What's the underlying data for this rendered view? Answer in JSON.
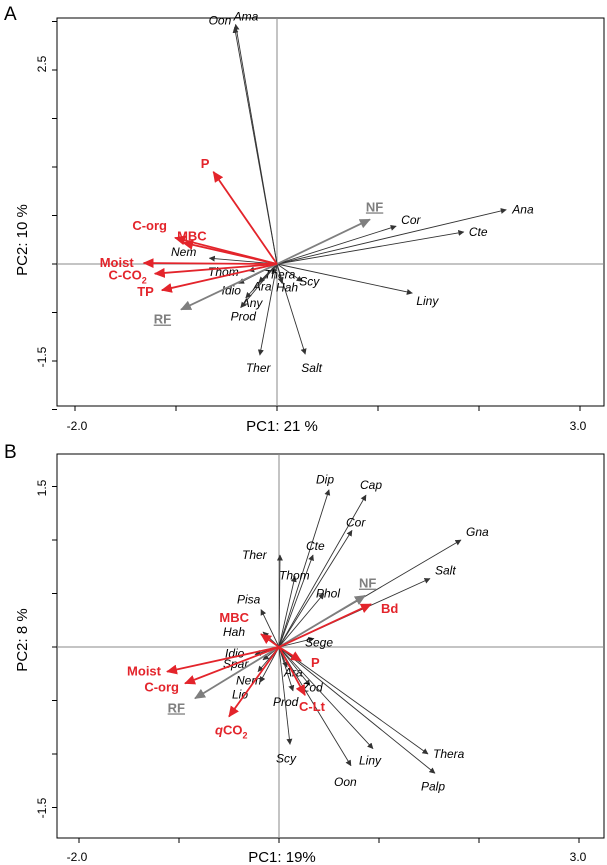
{
  "colors": {
    "species": "#333333",
    "env": "#e3242b",
    "factor": "#7f7f7f"
  },
  "chart_data": [
    {
      "panel": "A",
      "type": "scatter",
      "subtype": "biplot",
      "xlabel": "PC1: 21 %",
      "ylabel": "PC2: 10 %",
      "xlim": [
        -2.0,
        3.0
      ],
      "ylim": [
        -1.5,
        2.5
      ],
      "x_tick_labels": [
        "-2.0",
        "3.0"
      ],
      "y_tick_labels": [
        "-1.5",
        "2.5"
      ],
      "x_minor_ticks": [
        -2.0,
        -1.0,
        0.0,
        1.0,
        2.0,
        3.0
      ],
      "y_minor_ticks": [
        -1.5,
        -1.0,
        -0.5,
        0.0,
        0.5,
        1.0,
        1.5,
        2.0,
        2.5
      ],
      "species": [
        {
          "name": "Oon",
          "x": -0.42,
          "y": 2.44
        },
        {
          "name": "Ama",
          "x": -0.41,
          "y": 2.47
        },
        {
          "name": "Ana",
          "x": 2.27,
          "y": 0.56
        },
        {
          "name": "Cor",
          "x": 1.18,
          "y": 0.39
        },
        {
          "name": "Cte",
          "x": 1.85,
          "y": 0.33
        },
        {
          "name": "Liny",
          "x": 1.34,
          "y": -0.3
        },
        {
          "name": "Scy",
          "x": 0.25,
          "y": -0.18
        },
        {
          "name": "Salt",
          "x": 0.28,
          "y": -0.93
        },
        {
          "name": "Ther",
          "x": -0.17,
          "y": -0.94
        },
        {
          "name": "Nem",
          "x": -0.67,
          "y": 0.06
        },
        {
          "name": "Thom",
          "x": -0.28,
          "y": -0.07
        },
        {
          "name": "Thera",
          "x": -0.05,
          "y": -0.1
        },
        {
          "name": "Idio",
          "x": -0.38,
          "y": -0.2
        },
        {
          "name": "Ara",
          "x": -0.18,
          "y": -0.19
        },
        {
          "name": "Hah",
          "x": 0.05,
          "y": -0.2
        },
        {
          "name": "Any",
          "x": -0.31,
          "y": -0.35
        },
        {
          "name": "Prod",
          "x": -0.36,
          "y": -0.45
        }
      ],
      "env_vectors": [
        {
          "name": "P",
          "x": -0.63,
          "y": 0.95
        },
        {
          "name": "C-org",
          "x": -1.01,
          "y": 0.27
        },
        {
          "name": "MBC",
          "x": -0.93,
          "y": 0.22
        },
        {
          "name": "Moist",
          "x": -1.32,
          "y": 0.01
        },
        {
          "name": "C-CO2",
          "x": -1.21,
          "y": -0.1
        },
        {
          "name": "TP",
          "x": -1.14,
          "y": -0.27
        }
      ],
      "factor_vectors": [
        {
          "name": "NF",
          "x": 0.92,
          "y": 0.46
        },
        {
          "name": "RF",
          "x": -0.95,
          "y": -0.47
        }
      ]
    },
    {
      "panel": "B",
      "type": "scatter",
      "subtype": "biplot",
      "xlabel": "PC1: 19%",
      "ylabel": "PC2: 8 %",
      "xlim": [
        -2.0,
        3.0
      ],
      "ylim": [
        -1.5,
        1.5
      ],
      "x_tick_labels": [
        "-2.0",
        "3.0"
      ],
      "y_tick_labels": [
        "-1.5",
        "1.5"
      ],
      "x_minor_ticks": [
        -2.0,
        -1.0,
        0.0,
        1.0,
        2.0,
        3.0
      ],
      "y_minor_ticks": [
        -1.5,
        -1.0,
        -0.5,
        0.0,
        0.5,
        1.0,
        1.5
      ],
      "species": [
        {
          "name": "Dip",
          "x": 0.5,
          "y": 1.47
        },
        {
          "name": "Cap",
          "x": 0.87,
          "y": 1.42
        },
        {
          "name": "Cor",
          "x": 0.73,
          "y": 1.09
        },
        {
          "name": "Gna",
          "x": 1.82,
          "y": 1.0
        },
        {
          "name": "Cte",
          "x": 0.34,
          "y": 0.86
        },
        {
          "name": "Ther",
          "x": 0.01,
          "y": 0.86
        },
        {
          "name": "Thom",
          "x": 0.16,
          "y": 0.66
        },
        {
          "name": "Phol",
          "x": 0.45,
          "y": 0.5
        },
        {
          "name": "Salt",
          "x": 1.51,
          "y": 0.64
        },
        {
          "name": "Pisa",
          "x": -0.18,
          "y": 0.35
        },
        {
          "name": "Hah",
          "x": -0.16,
          "y": 0.14
        },
        {
          "name": "Sege",
          "x": 0.35,
          "y": 0.08
        },
        {
          "name": "Idio",
          "x": -0.24,
          "y": -0.07
        },
        {
          "name": "Spar",
          "x": -0.16,
          "y": -0.12
        },
        {
          "name": "Ara",
          "x": 0.08,
          "y": -0.19
        },
        {
          "name": "Nem",
          "x": -0.21,
          "y": -0.23
        },
        {
          "name": "Lio",
          "x": -0.19,
          "y": -0.33
        },
        {
          "name": "Prod",
          "x": 0.14,
          "y": -0.41
        },
        {
          "name": "Zod",
          "x": 0.31,
          "y": -0.36
        },
        {
          "name": "Scy",
          "x": 0.11,
          "y": -0.91
        },
        {
          "name": "Oon",
          "x": 0.72,
          "y": -1.11
        },
        {
          "name": "Liny",
          "x": 0.94,
          "y": -0.95
        },
        {
          "name": "Thera",
          "x": 1.49,
          "y": -1.0
        },
        {
          "name": "Palp",
          "x": 1.56,
          "y": -1.18
        }
      ],
      "env_vectors": [
        {
          "name": "MBC",
          "x": -0.18,
          "y": 0.12
        },
        {
          "name": "Bd",
          "x": 0.92,
          "y": 0.4
        },
        {
          "name": "P",
          "x": 0.22,
          "y": -0.13
        },
        {
          "name": "Moist",
          "x": -1.12,
          "y": -0.23
        },
        {
          "name": "C-org",
          "x": -0.94,
          "y": -0.34
        },
        {
          "name": "qCO2",
          "x": -0.5,
          "y": -0.65
        },
        {
          "name": "C-Lt",
          "x": 0.26,
          "y": -0.45
        }
      ],
      "factor_vectors": [
        {
          "name": "NF",
          "x": 0.86,
          "y": 0.48
        },
        {
          "name": "RF",
          "x": -0.84,
          "y": -0.48
        }
      ]
    }
  ]
}
